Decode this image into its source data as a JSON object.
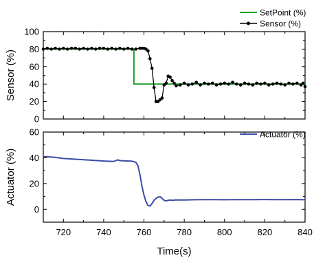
{
  "chart_data": [
    {
      "type": "line",
      "panel": "top",
      "ylabel": "Sensor (%)",
      "xlabel": "",
      "xlim": [
        710,
        840
      ],
      "ylim": [
        0,
        100
      ],
      "xticks": [
        720,
        740,
        760,
        780,
        800,
        820,
        840
      ],
      "yticks": [
        0,
        20,
        40,
        60,
        80,
        100
      ],
      "ytick_labels": [
        "0",
        "20",
        "40",
        "60",
        "80",
        "100"
      ],
      "legend": "top-right",
      "series": [
        {
          "name": "SetPoint (%)",
          "color": "#1f9e2a",
          "marker": "none",
          "x": [
            710,
            755,
            755,
            840
          ],
          "y": [
            80,
            80,
            40,
            40
          ]
        },
        {
          "name": "Sensor (%)",
          "color": "#000000",
          "marker": "circle",
          "x": [
            710,
            712,
            714,
            716,
            718,
            720,
            722,
            724,
            726,
            728,
            730,
            732,
            734,
            736,
            738,
            740,
            742,
            744,
            746,
            748,
            750,
            752,
            754,
            756,
            758,
            759,
            760,
            761,
            762,
            763,
            764,
            765,
            766,
            767,
            768,
            769,
            770,
            771,
            772,
            773,
            774,
            775,
            776,
            778,
            780,
            782,
            784,
            786,
            788,
            790,
            792,
            794,
            796,
            798,
            800,
            802,
            804,
            806,
            808,
            810,
            812,
            814,
            816,
            818,
            820,
            822,
            824,
            826,
            828,
            830,
            832,
            834,
            836,
            838,
            839,
            840
          ],
          "y": [
            80,
            81,
            80,
            81,
            80,
            81,
            80,
            81,
            81,
            80,
            81,
            80,
            81,
            80,
            81,
            81,
            80,
            81,
            80,
            81,
            80,
            81,
            80,
            80,
            81,
            81,
            81,
            80,
            78,
            69,
            58,
            36,
            20,
            20,
            22,
            24,
            39,
            41,
            49,
            48,
            44,
            41,
            38,
            39,
            41,
            39,
            40,
            42,
            39,
            41,
            40,
            41,
            39,
            40,
            41,
            40,
            42,
            40,
            39,
            41,
            40,
            39,
            41,
            40,
            41,
            39,
            40,
            41,
            40,
            39,
            41,
            40,
            41,
            39,
            41,
            37
          ]
        }
      ]
    },
    {
      "type": "line",
      "panel": "bottom",
      "ylabel": "Actuator (%)",
      "xlabel": "Time(s)",
      "xlim": [
        710,
        840
      ],
      "ylim": [
        -10,
        60
      ],
      "xticks": [
        720,
        740,
        760,
        780,
        800,
        820,
        840
      ],
      "xtick_labels": [
        "720",
        "740",
        "760",
        "780",
        "800",
        "820",
        "840"
      ],
      "yticks": [
        0,
        20,
        40,
        60
      ],
      "ytick_labels": [
        "0",
        "20",
        "40",
        "60"
      ],
      "legend": "top-right",
      "series": [
        {
          "name": "Actuator (%)",
          "color": "#3a4ba6",
          "marker": "none",
          "x": [
            710,
            715,
            720,
            730,
            740,
            745,
            746,
            747,
            748,
            750,
            754,
            756,
            757,
            758,
            759,
            760,
            761,
            762,
            763,
            764,
            765,
            766,
            767,
            768,
            769,
            770,
            771,
            772,
            773,
            774,
            776,
            780,
            785,
            790,
            795,
            800,
            805,
            810,
            815,
            820,
            825,
            830,
            835,
            840
          ],
          "y": [
            41,
            40.5,
            39.5,
            38.5,
            37.5,
            37.2,
            37.8,
            38.4,
            37.8,
            37.6,
            37.4,
            36.5,
            34,
            27,
            18,
            11,
            6,
            3,
            2.5,
            4.5,
            7,
            8.5,
            9.5,
            9.7,
            8.5,
            7,
            6.5,
            7,
            7.2,
            7,
            7.3,
            7.2,
            7.4,
            7.5,
            7.5,
            7.4,
            7.5,
            7.5,
            7.5,
            7.6,
            7.5,
            7.5,
            7.6,
            7.4
          ]
        }
      ]
    }
  ]
}
